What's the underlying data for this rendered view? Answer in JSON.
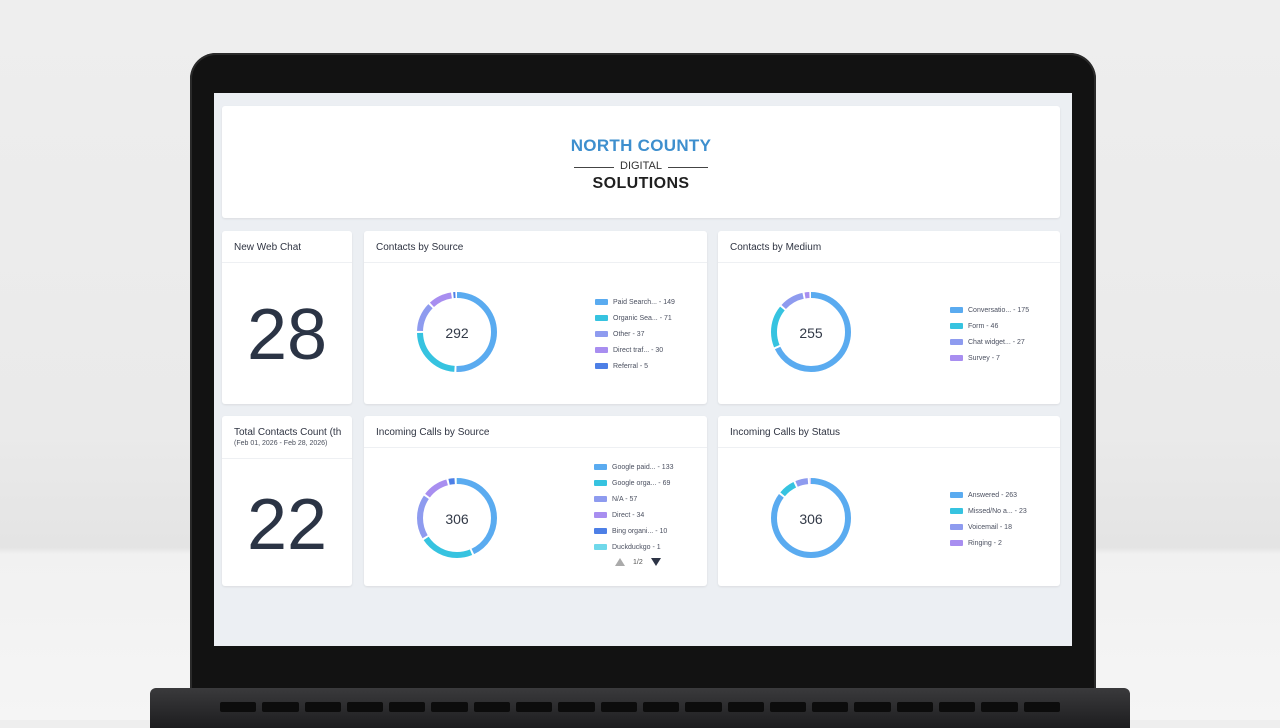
{
  "header": {
    "logo": {
      "line1": "NORTH COUNTY",
      "line2": "DIGITAL",
      "line3": "SOLUTIONS"
    }
  },
  "widgets": {
    "web_chat": {
      "title": "New Web Chat",
      "value": "28"
    },
    "total_contacts": {
      "title": "Total Contacts Count (th",
      "subtitle": "(Feb 01, 2026 - Feb 28, 2026)",
      "value": "22"
    },
    "contacts_by_source": {
      "title": "Contacts by Source",
      "total": "292",
      "items": [
        {
          "label": "Paid Search... - 149",
          "value": 149,
          "color": "#5aabf0"
        },
        {
          "label": "Organic Sea... - 71",
          "value": 71,
          "color": "#36c3e0"
        },
        {
          "label": "Other - 37",
          "value": 37,
          "color": "#8e9bef"
        },
        {
          "label": "Direct traf... - 30",
          "value": 30,
          "color": "#a88ef0"
        },
        {
          "label": "Referral - 5",
          "value": 5,
          "color": "#4d7fe6"
        }
      ]
    },
    "contacts_by_medium": {
      "title": "Contacts by Medium",
      "total": "255",
      "items": [
        {
          "label": "Conversatio... - 175",
          "value": 175,
          "color": "#5aabf0"
        },
        {
          "label": "Form - 46",
          "value": 46,
          "color": "#36c3e0"
        },
        {
          "label": "Chat widget... - 27",
          "value": 27,
          "color": "#8e9bef"
        },
        {
          "label": "Survey - 7",
          "value": 7,
          "color": "#a88ef0"
        }
      ]
    },
    "calls_by_source": {
      "title": "Incoming Calls by Source",
      "total": "306",
      "pager": "1/2",
      "items": [
        {
          "label": "Google paid... - 133",
          "value": 133,
          "color": "#5aabf0"
        },
        {
          "label": "Google orga... - 69",
          "value": 69,
          "color": "#36c3e0"
        },
        {
          "label": "N/A - 57",
          "value": 57,
          "color": "#8e9bef"
        },
        {
          "label": "Direct - 34",
          "value": 34,
          "color": "#a88ef0"
        },
        {
          "label": "Bing organi... - 10",
          "value": 10,
          "color": "#4d7fe6"
        },
        {
          "label": "Duckduckgo - 1",
          "value": 1,
          "color": "#6fd8ea"
        }
      ]
    },
    "calls_by_status": {
      "title": "Incoming Calls by Status",
      "total": "306",
      "items": [
        {
          "label": "Answered - 263",
          "value": 263,
          "color": "#5aabf0"
        },
        {
          "label": "Missed/No a... - 23",
          "value": 23,
          "color": "#36c3e0"
        },
        {
          "label": "Voicemail - 18",
          "value": 18,
          "color": "#8e9bef"
        },
        {
          "label": "Ringing - 2",
          "value": 2,
          "color": "#a88ef0"
        }
      ]
    }
  }
}
